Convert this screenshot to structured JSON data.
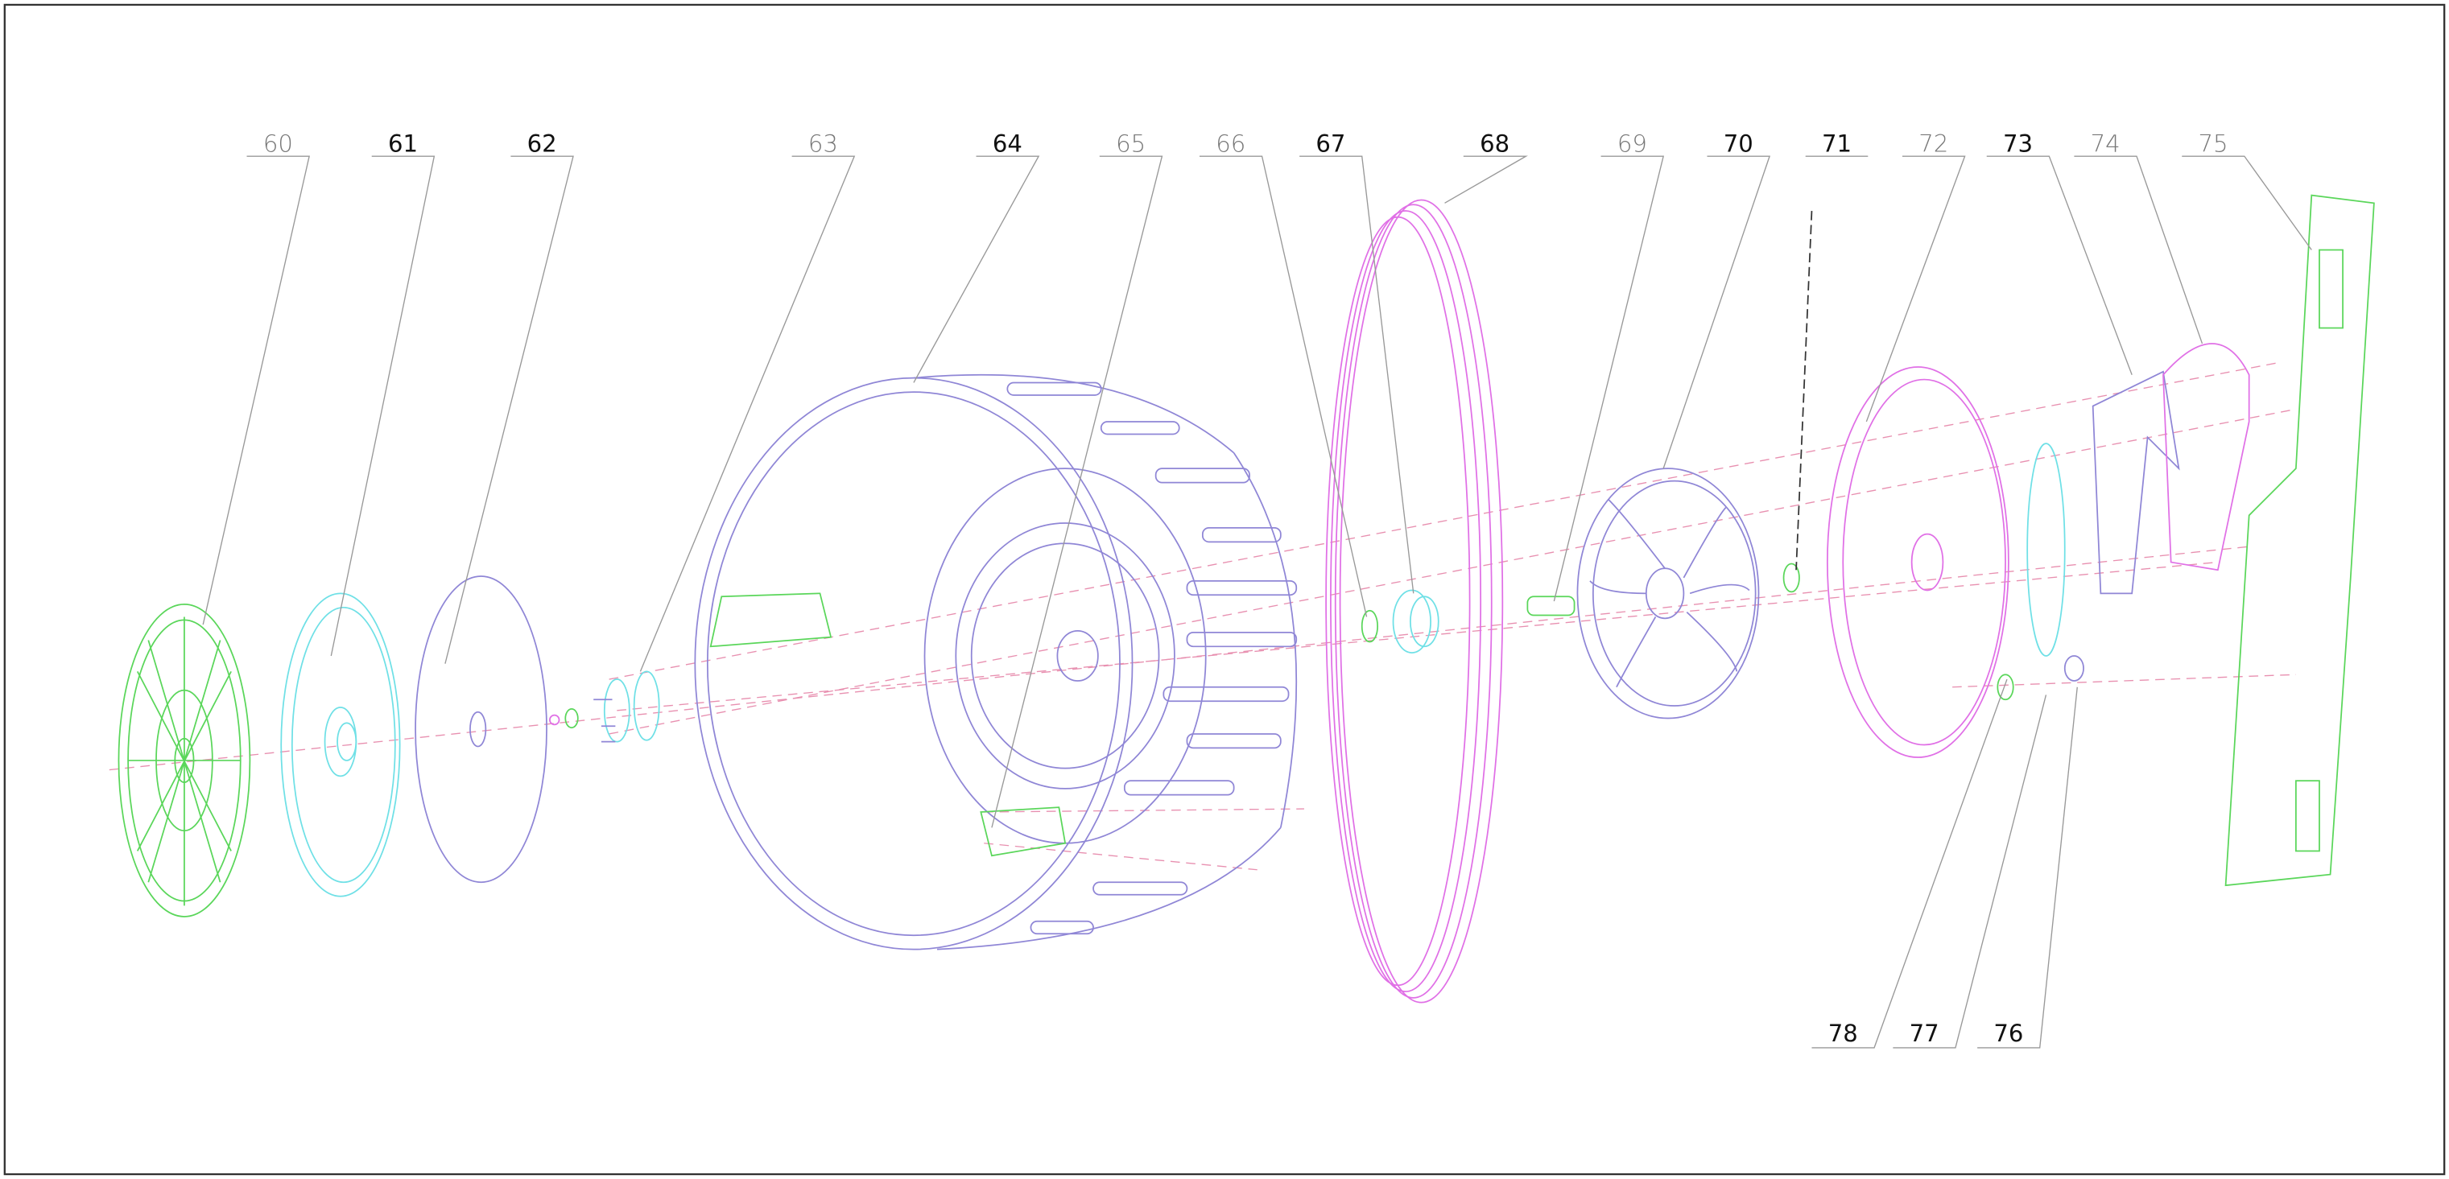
{
  "labels": [
    "60",
    "61",
    "62",
    "63",
    "64",
    "65",
    "66",
    "67",
    "68",
    "69",
    "70",
    "71",
    "72",
    "73",
    "74",
    "75",
    "78",
    "77",
    "76"
  ]
}
